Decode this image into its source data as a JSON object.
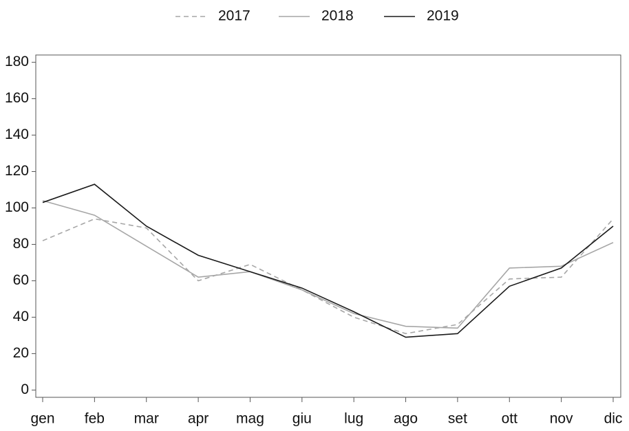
{
  "chart_data": {
    "type": "line",
    "categories": [
      "gen",
      "feb",
      "mar",
      "apr",
      "mag",
      "giu",
      "lug",
      "ago",
      "set",
      "ott",
      "nov",
      "dic"
    ],
    "series": [
      {
        "name": "2017",
        "color": "#a6a6a6",
        "dash": true,
        "values": [
          82,
          94,
          89,
          60,
          69,
          55,
          40,
          31,
          36,
          61,
          62,
          94
        ]
      },
      {
        "name": "2018",
        "color": "#a6a6a6",
        "dash": false,
        "values": [
          104,
          96,
          79,
          62,
          65,
          55,
          42,
          35,
          34,
          67,
          68,
          81
        ]
      },
      {
        "name": "2019",
        "color": "#1a1a1a",
        "dash": false,
        "values": [
          103,
          113,
          90,
          74,
          65,
          56,
          43,
          29,
          31,
          57,
          67,
          90
        ]
      }
    ],
    "ylim": [
      -4,
      184
    ],
    "yticks": [
      0,
      20,
      40,
      60,
      80,
      100,
      120,
      140,
      160,
      180
    ],
    "legend": "top",
    "grid": false
  }
}
